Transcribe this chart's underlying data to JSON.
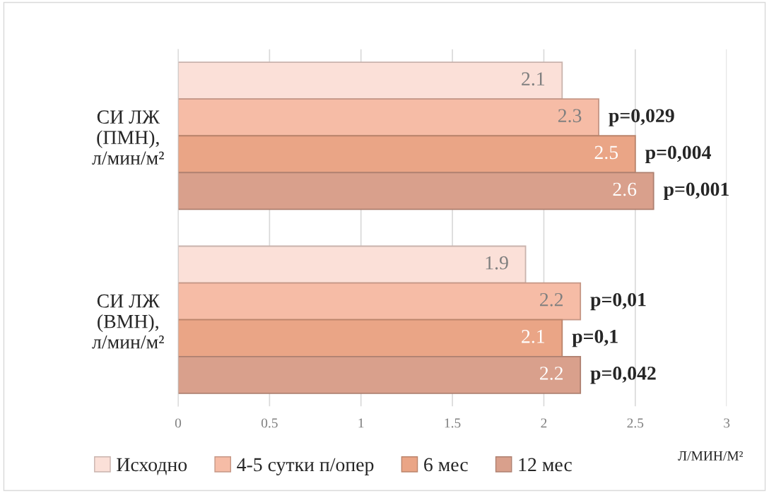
{
  "chart_data": {
    "type": "bar",
    "orientation": "horizontal",
    "categories": [
      "СИ ЛЖ\n(ПМН),\nл/мин/м²",
      "СИ ЛЖ\n(ВМН),\nл/мин/м²"
    ],
    "series": [
      {
        "name": "Исходно",
        "color": "#fbe0d8",
        "values": [
          2.1,
          1.9
        ]
      },
      {
        "name": "4-5 сутки п/опер",
        "color": "#f6bca6",
        "values": [
          2.3,
          2.2
        ]
      },
      {
        "name": "6 мес",
        "color": "#eaa586",
        "values": [
          2.5,
          2.1
        ]
      },
      {
        "name": "12 мес",
        "color": "#d9a08c",
        "values": [
          2.6,
          2.2
        ]
      }
    ],
    "xlabel": "Л/МИН/М²",
    "xlim": [
      0,
      3
    ],
    "xticks": [
      0,
      0.5,
      1,
      1.5,
      2,
      2.5,
      3
    ],
    "grid": "x",
    "legend": "bottom",
    "data_labels": true,
    "annotations": [
      "p=0,029",
      "p=0,004",
      "p=0,001",
      "p=0,01",
      "p=0,1",
      "p=0,042"
    ]
  }
}
